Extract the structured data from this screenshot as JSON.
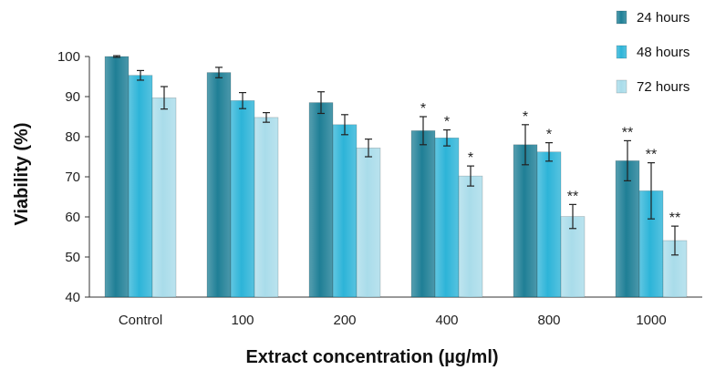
{
  "chart_data": {
    "type": "bar",
    "title": "",
    "xlabel": "Extract concentration (µg/ml)",
    "ylabel": "Viability (%)",
    "ylim": [
      40,
      100
    ],
    "yticks": [
      40,
      50,
      60,
      70,
      80,
      90,
      100
    ],
    "categories": [
      "Control",
      "100",
      "200",
      "400",
      "800",
      "1000"
    ],
    "legend_position": "top-right",
    "series": [
      {
        "name": "24 hours",
        "color": "#1f7f96",
        "values": [
          100,
          96,
          88.5,
          81.5,
          78,
          74
        ],
        "errors": [
          0.2,
          1.3,
          2.7,
          3.5,
          5.0,
          5.0
        ],
        "significance": [
          "",
          "",
          "",
          "*",
          "*",
          "**"
        ]
      },
      {
        "name": "48 hours",
        "color": "#2db4d8",
        "values": [
          95.3,
          89,
          83,
          79.7,
          76.2,
          66.5
        ],
        "errors": [
          1.2,
          2.0,
          2.5,
          2.0,
          2.3,
          7.0
        ],
        "significance": [
          "",
          "",
          "",
          "*",
          "*",
          "**"
        ]
      },
      {
        "name": "72 hours",
        "color": "#a9dcea",
        "values": [
          89.7,
          84.8,
          77.2,
          70.2,
          60.1,
          54.1
        ],
        "errors": [
          2.8,
          1.2,
          2.2,
          2.5,
          3.0,
          3.6
        ],
        "significance": [
          "",
          "",
          "",
          "*",
          "**",
          "**"
        ]
      }
    ]
  }
}
